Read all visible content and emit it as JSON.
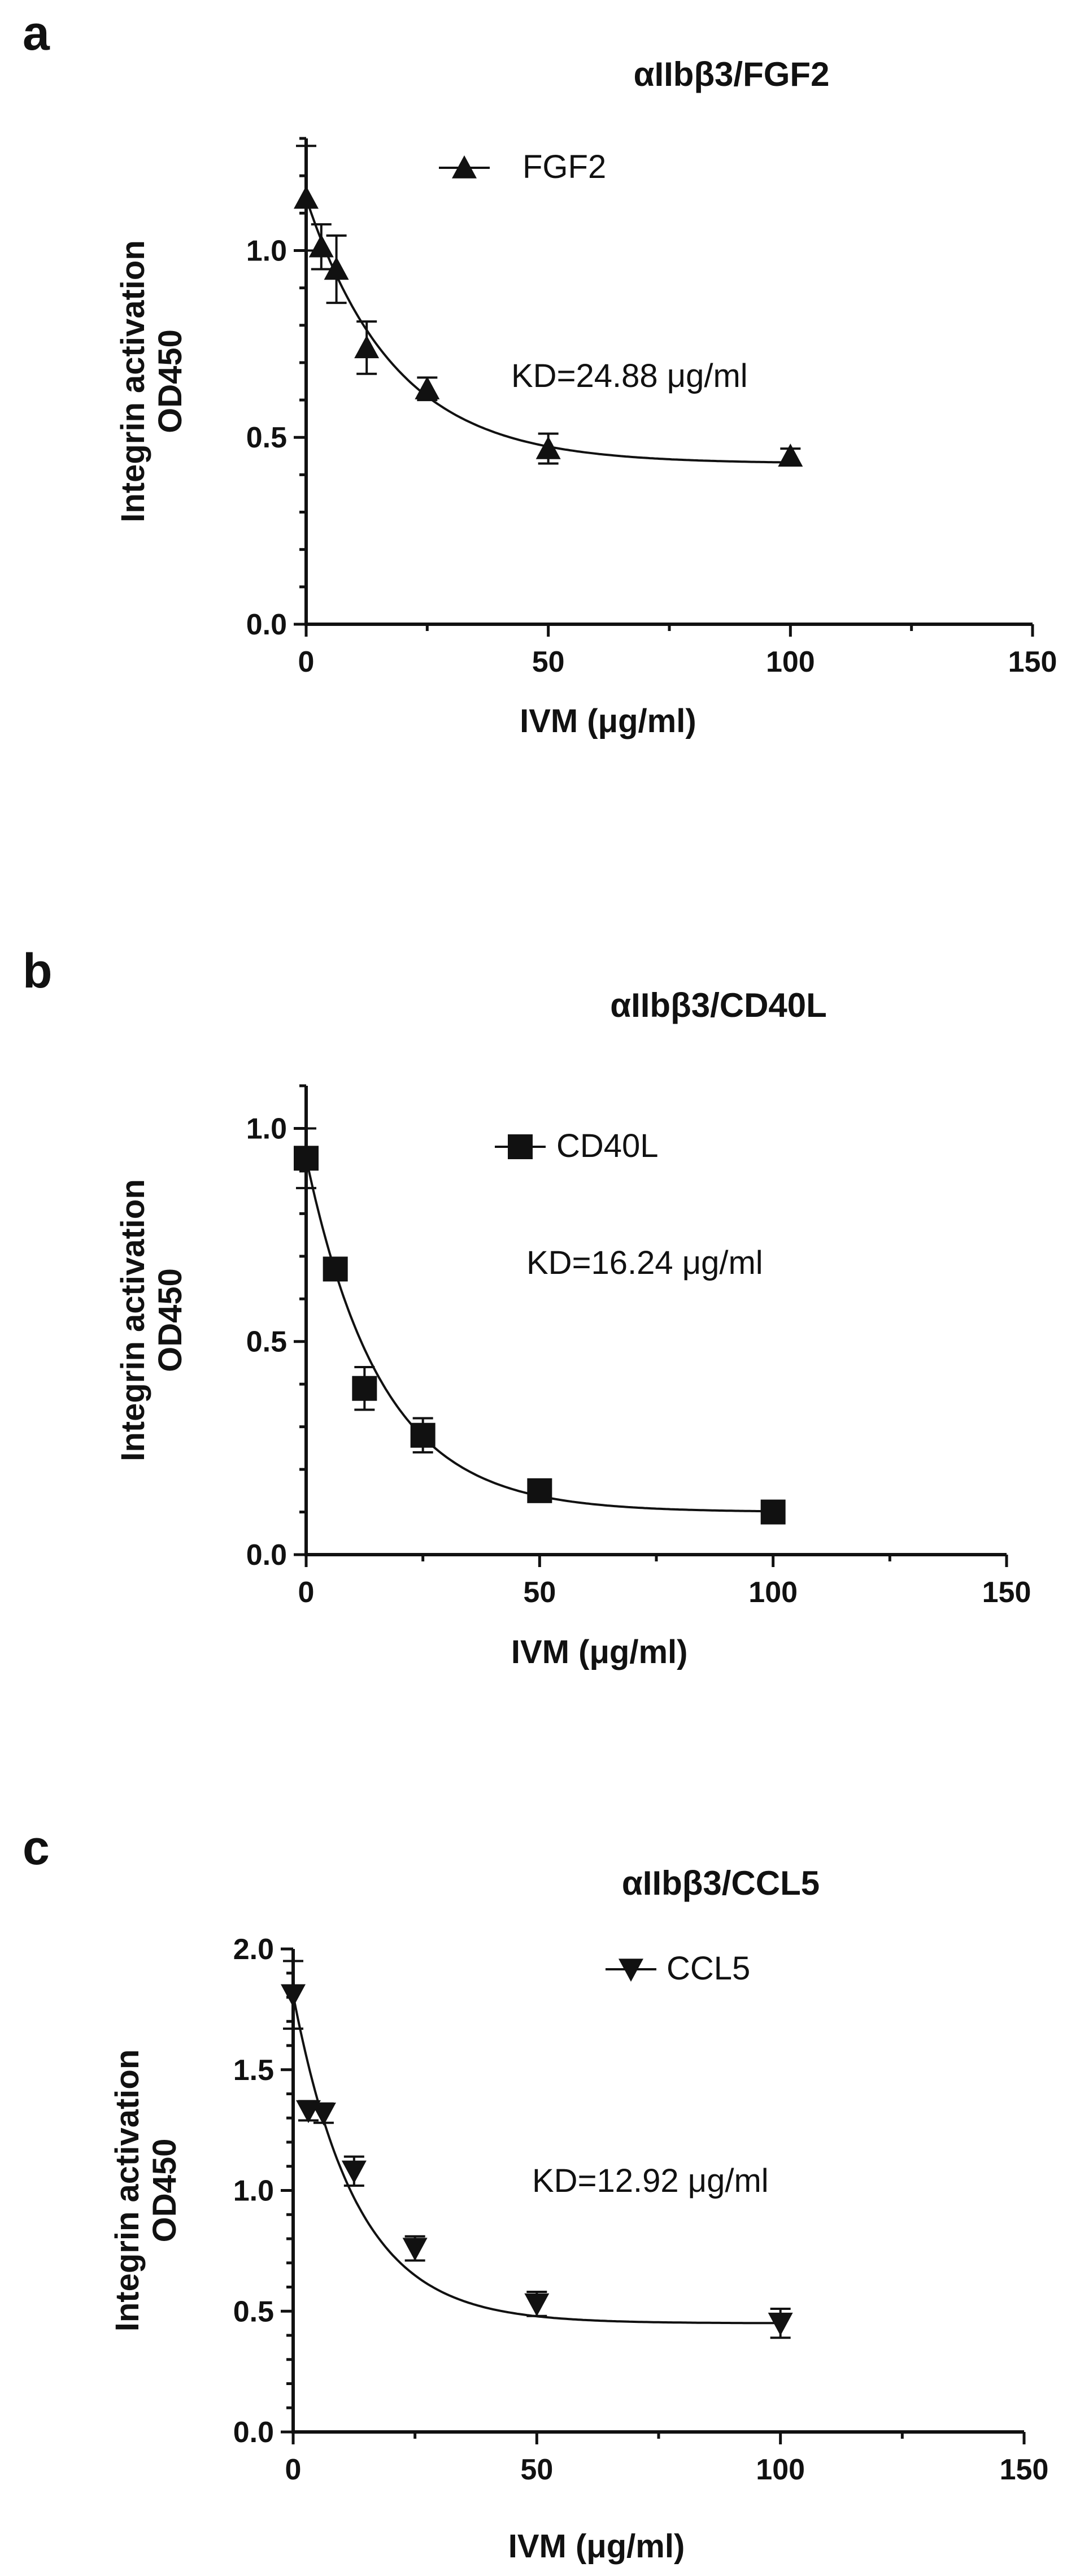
{
  "chart_data": [
    {
      "panel": "a",
      "type": "scatter",
      "title": "αIIbβ3/FGF2",
      "xlabel": "IVM (μg/ml)",
      "ylabel": [
        "Integrin activation",
        "OD450"
      ],
      "xlim": [
        0,
        150
      ],
      "ylim": [
        0,
        1.3
      ],
      "xticks": [
        "0",
        "50",
        "100",
        "150"
      ],
      "yticks": [
        "0.0",
        "0.5",
        "1.0"
      ],
      "legend_position": "top-center",
      "annotation": "KD=24.88 μg/ml",
      "series": [
        {
          "name": "FGF2",
          "marker": "triangle-up",
          "x": [
            0,
            3.125,
            6.25,
            12.5,
            25,
            50,
            100
          ],
          "y": [
            1.14,
            1.01,
            0.95,
            0.74,
            0.63,
            0.47,
            0.45
          ],
          "err": [
            0.14,
            0.06,
            0.09,
            0.07,
            0.03,
            0.04,
            0.02
          ]
        }
      ],
      "fit": {
        "top": 1.14,
        "plateau": 0.43,
        "k": 0.055
      }
    },
    {
      "panel": "b",
      "type": "scatter",
      "title": "αIIbβ3/CD40L",
      "xlabel": "IVM (μg/ml)",
      "ylabel": [
        "Integrin activation",
        "OD450"
      ],
      "xlim": [
        0,
        150
      ],
      "ylim": [
        0,
        1.1
      ],
      "xticks": [
        "0",
        "50",
        "100",
        "150"
      ],
      "yticks": [
        "0.0",
        "0.5",
        "1.0"
      ],
      "legend_position": "top-center",
      "annotation": "KD=16.24 μg/ml",
      "series": [
        {
          "name": "CD40L",
          "marker": "square",
          "x": [
            0,
            6.25,
            12.5,
            25,
            50,
            100
          ],
          "y": [
            0.93,
            0.67,
            0.39,
            0.28,
            0.15,
            0.1
          ],
          "err": [
            0.07,
            0.02,
            0.05,
            0.04,
            0.02,
            0.02
          ]
        }
      ],
      "fit": {
        "top": 0.93,
        "plateau": 0.1,
        "k": 0.062
      }
    },
    {
      "panel": "c",
      "type": "scatter",
      "title": "αIIbβ3/CCL5",
      "xlabel": "IVM (μg/ml)",
      "ylabel": [
        "Integrin activation",
        "OD450"
      ],
      "xlim": [
        0,
        150
      ],
      "ylim": [
        0,
        2.0
      ],
      "xticks": [
        "0",
        "50",
        "100",
        "150"
      ],
      "yticks": [
        "0.0",
        "0.5",
        "1.0",
        "1.5",
        "2.0"
      ],
      "legend_position": "top-center",
      "annotation": "KD=12.92 μg/ml",
      "series": [
        {
          "name": "CCL5",
          "marker": "triangle-down",
          "x": [
            0,
            3.125,
            6.25,
            12.5,
            25,
            50,
            100
          ],
          "y": [
            1.81,
            1.33,
            1.32,
            1.08,
            0.76,
            0.53,
            0.45
          ],
          "err": [
            0.14,
            0.04,
            0.04,
            0.06,
            0.05,
            0.05,
            0.06
          ]
        }
      ],
      "fit": {
        "top": 1.81,
        "plateau": 0.45,
        "k": 0.077
      }
    }
  ]
}
